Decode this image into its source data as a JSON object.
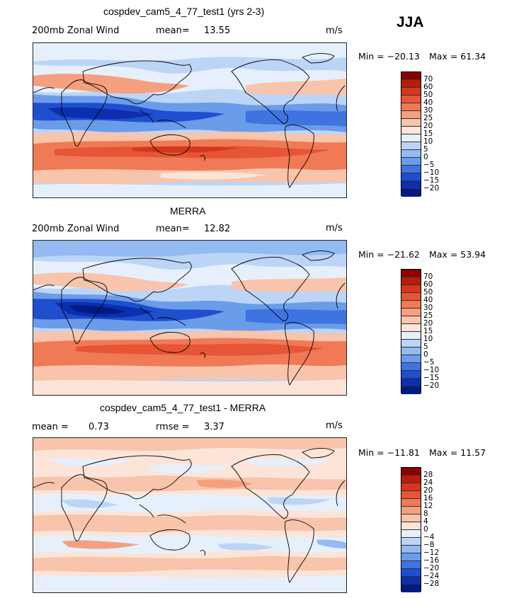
{
  "season": "JJA",
  "panels": [
    {
      "title": "cospdev_cam5_4_77_test1 (yrs 2-3)",
      "left_label": "200mb Zonal Wind",
      "stat_label": "mean=",
      "stat_value": "13.55",
      "units": "m/s",
      "min_label": "Min = −20.13",
      "max_label": "Max = 61.34",
      "ticks": [
        "70",
        "60",
        "50",
        "40",
        "30",
        "25",
        "20",
        "15",
        "10",
        "5",
        "0",
        "−5",
        "−10",
        "−15",
        "−20"
      ],
      "colors": [
        "#8b0000",
        "#b71c0c",
        "#d6361c",
        "#e65535",
        "#ef7a55",
        "#f4a07f",
        "#f8c4ab",
        "#fce4d8",
        "#e6f0fc",
        "#bcd5f7",
        "#93baf1",
        "#6b9cea",
        "#3f74e0",
        "#1f4fcf",
        "#0c2fb0",
        "#001a80"
      ]
    },
    {
      "title": "MERRA",
      "left_label": "200mb Zonal Wind",
      "stat_label": "mean=",
      "stat_value": "12.82",
      "units": "m/s",
      "min_label": "Min = −21.62",
      "max_label": "Max = 53.94",
      "ticks": [
        "70",
        "60",
        "50",
        "40",
        "30",
        "25",
        "20",
        "15",
        "10",
        "5",
        "0",
        "−5",
        "−10",
        "−15",
        "−20"
      ],
      "colors": [
        "#8b0000",
        "#b71c0c",
        "#d6361c",
        "#e65535",
        "#ef7a55",
        "#f4a07f",
        "#f8c4ab",
        "#fce4d8",
        "#e6f0fc",
        "#bcd5f7",
        "#93baf1",
        "#6b9cea",
        "#3f74e0",
        "#1f4fcf",
        "#0c2fb0",
        "#001a80"
      ]
    },
    {
      "title": "cospdev_cam5_4_77_test1 - MERRA",
      "left_label": "mean =",
      "left_value": "0.73",
      "stat_label": "rmse =",
      "stat_value": "3.37",
      "units": "m/s",
      "min_label": "Min = −11.81",
      "max_label": "Max = 11.57",
      "ticks": [
        "28",
        "24",
        "20",
        "16",
        "12",
        "8",
        "4",
        "0",
        "−4",
        "−8",
        "−12",
        "−16",
        "−20",
        "−24",
        "−28"
      ],
      "colors": [
        "#8b0000",
        "#b71c0c",
        "#d6361c",
        "#e65535",
        "#ef7a55",
        "#f4a07f",
        "#f8c4ab",
        "#fce4d8",
        "#e6f0fc",
        "#bcd5f7",
        "#93baf1",
        "#6b9cea",
        "#3f74e0",
        "#1f4fcf",
        "#0c2fb0",
        "#001a80"
      ]
    }
  ]
}
